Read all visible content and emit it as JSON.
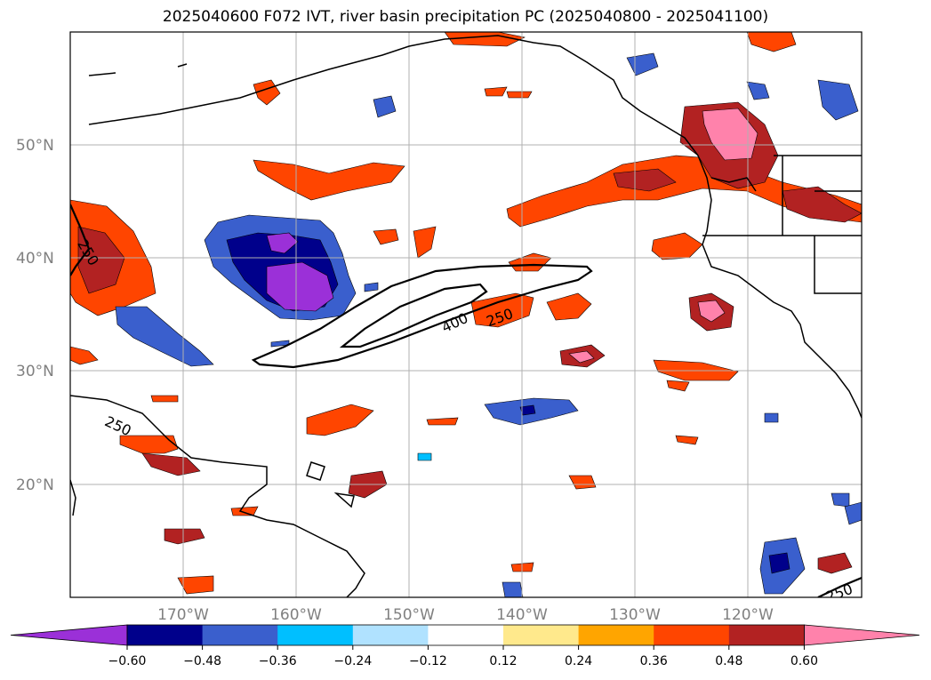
{
  "title": "2025040600 F072 IVT, river basin precipitation PC (2025040800 - 2025041100)",
  "map": {
    "lat_labels": [
      "50°N",
      "40°N",
      "30°N",
      "20°N"
    ],
    "lon_labels": [
      "170°W",
      "160°W",
      "150°W",
      "140°W",
      "130°W",
      "120°W"
    ],
    "ivt_contour_levels": [
      "250",
      "400"
    ]
  },
  "colorbar": {
    "ticks": [
      "−0.60",
      "−0.48",
      "−0.36",
      "−0.24",
      "−0.12",
      "0.12",
      "0.24",
      "0.36",
      "0.48",
      "0.60"
    ],
    "colors": [
      "#9b30d8",
      "#00008b",
      "#3a5fcd",
      "#00bfff",
      "#b0e2ff",
      "#ffffff",
      "#ffe98c",
      "#ffa500",
      "#ff4500",
      "#b22222",
      "#ff82ab"
    ]
  }
}
